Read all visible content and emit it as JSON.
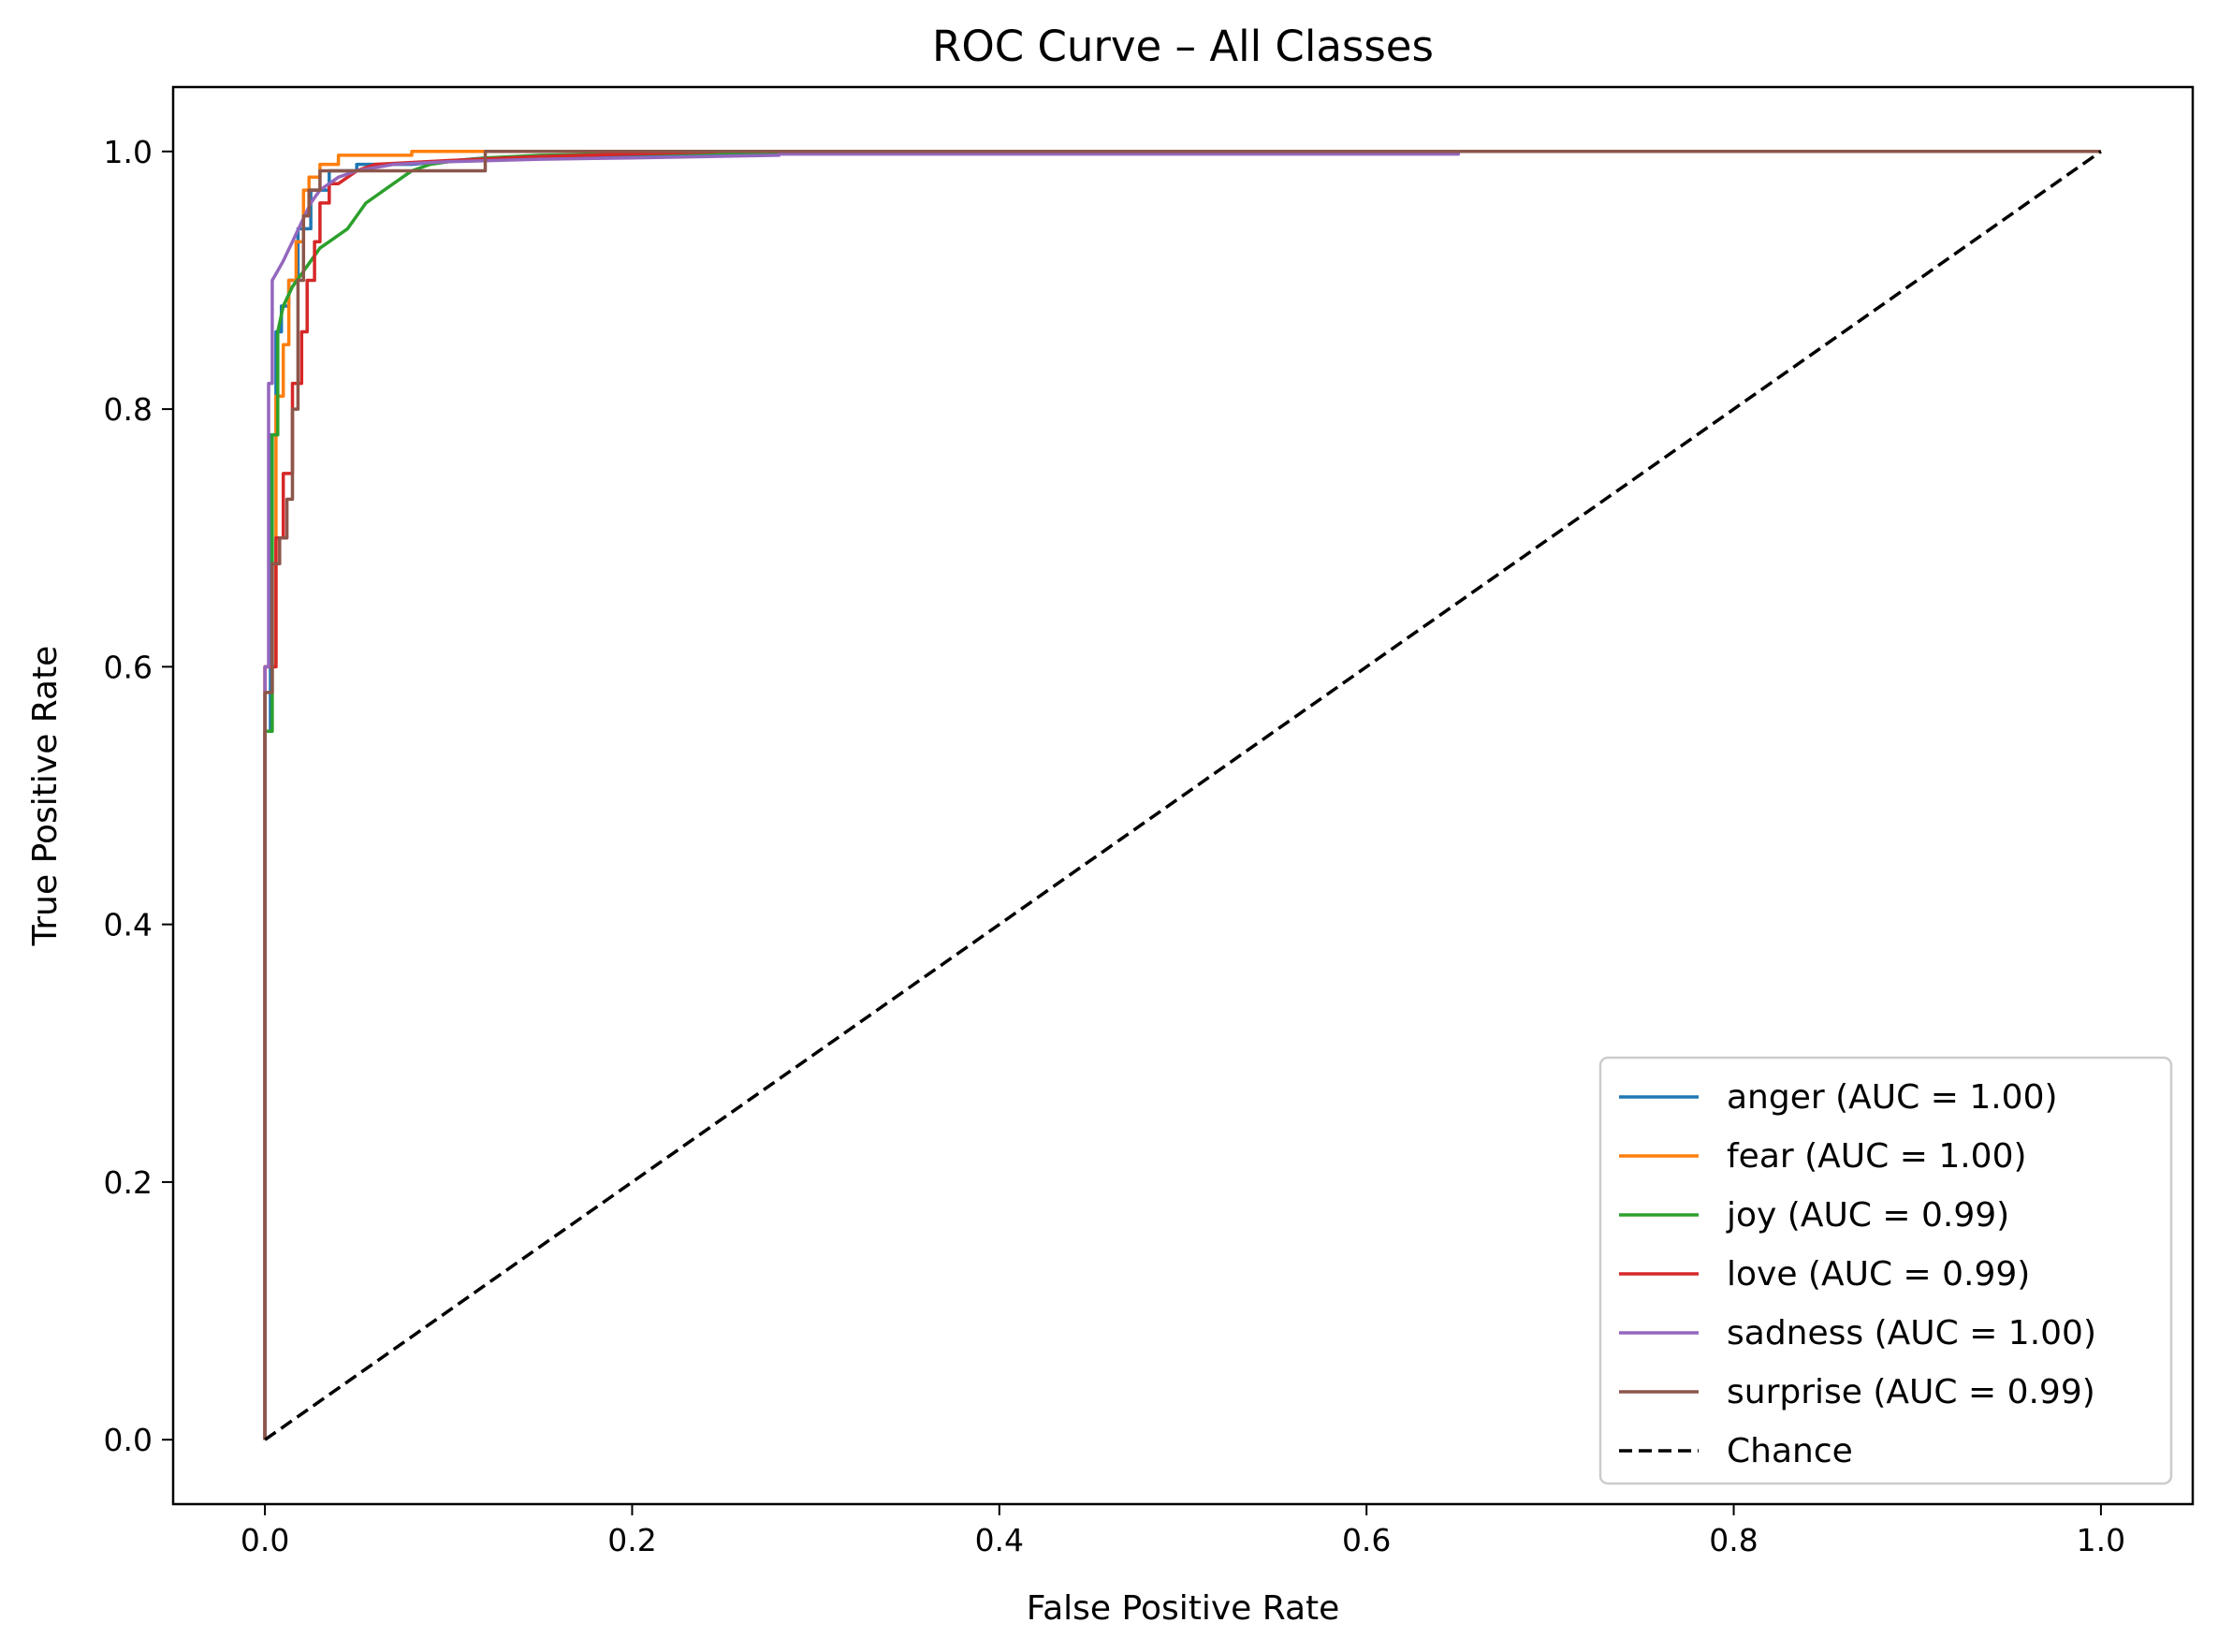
{
  "chart_data": {
    "type": "line",
    "title": "ROC Curve – All Classes",
    "xlabel": "False Positive Rate",
    "ylabel": "True Positive Rate",
    "xlim": [
      -0.05,
      1.05
    ],
    "ylim": [
      -0.05,
      1.05
    ],
    "xticks": [
      "0.0",
      "0.2",
      "0.4",
      "0.6",
      "0.8",
      "1.0"
    ],
    "yticks": [
      "0.0",
      "0.2",
      "0.4",
      "0.6",
      "0.8",
      "1.0"
    ],
    "grid": false,
    "legend_position": "lower-right",
    "series": [
      {
        "name": "anger (AUC = 1.00)",
        "color": "#1f77b4",
        "x": [
          0,
          0,
          0.003,
          0.003,
          0.006,
          0.006,
          0.009,
          0.009,
          0.013,
          0.013,
          0.018,
          0.018,
          0.025,
          0.025,
          0.035,
          0.035,
          0.05,
          0.05,
          0.08,
          0.12,
          0.2,
          0.35,
          1.0
        ],
        "y": [
          0,
          0.55,
          0.55,
          0.78,
          0.78,
          0.86,
          0.86,
          0.88,
          0.88,
          0.9,
          0.9,
          0.94,
          0.94,
          0.97,
          0.97,
          0.985,
          0.985,
          0.99,
          0.99,
          0.995,
          0.997,
          1.0,
          1.0
        ]
      },
      {
        "name": "fear (AUC = 1.00)",
        "color": "#ff7f0e",
        "x": [
          0,
          0,
          0.006,
          0.006,
          0.01,
          0.01,
          0.013,
          0.013,
          0.017,
          0.017,
          0.021,
          0.021,
          0.024,
          0.024,
          0.03,
          0.03,
          0.04,
          0.04,
          0.08,
          0.08,
          0.12,
          1.0
        ],
        "y": [
          0,
          0.6,
          0.6,
          0.81,
          0.81,
          0.85,
          0.85,
          0.9,
          0.9,
          0.93,
          0.93,
          0.97,
          0.97,
          0.98,
          0.98,
          0.99,
          0.99,
          0.997,
          0.997,
          1.0,
          1.0,
          1.0
        ]
      },
      {
        "name": "joy (AUC = 0.99)",
        "color": "#2ca02c",
        "x": [
          0,
          0,
          0.004,
          0.004,
          0.007,
          0.007,
          0.01,
          0.015,
          0.02,
          0.025,
          0.03,
          0.035,
          0.04,
          0.045,
          0.05,
          0.055,
          0.06,
          0.065,
          0.07,
          0.075,
          0.08,
          0.09,
          0.1,
          0.12,
          0.15,
          0.2,
          0.3,
          1.0
        ],
        "y": [
          0,
          0.55,
          0.55,
          0.78,
          0.78,
          0.86,
          0.88,
          0.895,
          0.905,
          0.915,
          0.925,
          0.93,
          0.935,
          0.94,
          0.95,
          0.96,
          0.965,
          0.97,
          0.975,
          0.98,
          0.985,
          0.99,
          0.992,
          0.995,
          0.997,
          0.998,
          1.0,
          1.0
        ]
      },
      {
        "name": "love (AUC = 0.99)",
        "color": "#d62728",
        "x": [
          0,
          0,
          0.006,
          0.006,
          0.01,
          0.01,
          0.015,
          0.015,
          0.02,
          0.02,
          0.023,
          0.023,
          0.027,
          0.027,
          0.03,
          0.03,
          0.035,
          0.035,
          0.04,
          0.05,
          0.06,
          0.1,
          0.15,
          0.25,
          1.0
        ],
        "y": [
          0,
          0.6,
          0.6,
          0.7,
          0.7,
          0.75,
          0.75,
          0.82,
          0.82,
          0.86,
          0.86,
          0.9,
          0.9,
          0.93,
          0.93,
          0.96,
          0.96,
          0.975,
          0.975,
          0.985,
          0.99,
          0.993,
          0.996,
          1.0,
          1.0
        ]
      },
      {
        "name": "sadness (AUC = 1.00)",
        "color": "#9467bd",
        "x": [
          0,
          0,
          0.002,
          0.002,
          0.004,
          0.004,
          0.006,
          0.01,
          0.015,
          0.02,
          0.025,
          0.03,
          0.04,
          0.05,
          0.07,
          0.1,
          0.15,
          0.2,
          0.28,
          0.28,
          0.65,
          0.65,
          1.0
        ],
        "y": [
          0,
          0.6,
          0.6,
          0.82,
          0.82,
          0.9,
          0.905,
          0.915,
          0.93,
          0.945,
          0.96,
          0.97,
          0.98,
          0.985,
          0.99,
          0.992,
          0.994,
          0.995,
          0.997,
          0.998,
          0.998,
          1.0,
          1.0
        ]
      },
      {
        "name": "surprise (AUC = 0.99)",
        "color": "#8c564b",
        "x": [
          0,
          0,
          0.004,
          0.004,
          0.008,
          0.008,
          0.012,
          0.012,
          0.015,
          0.015,
          0.018,
          0.018,
          0.021,
          0.021,
          0.024,
          0.024,
          0.03,
          0.03,
          0.12,
          0.12,
          1.0
        ],
        "y": [
          0,
          0.58,
          0.58,
          0.68,
          0.68,
          0.7,
          0.7,
          0.73,
          0.73,
          0.8,
          0.8,
          0.9,
          0.9,
          0.95,
          0.95,
          0.97,
          0.97,
          0.985,
          0.985,
          1.0,
          1.0
        ]
      },
      {
        "name": "Chance",
        "color": "#000000",
        "dashed": true,
        "x": [
          0,
          1
        ],
        "y": [
          0,
          1
        ]
      }
    ]
  }
}
